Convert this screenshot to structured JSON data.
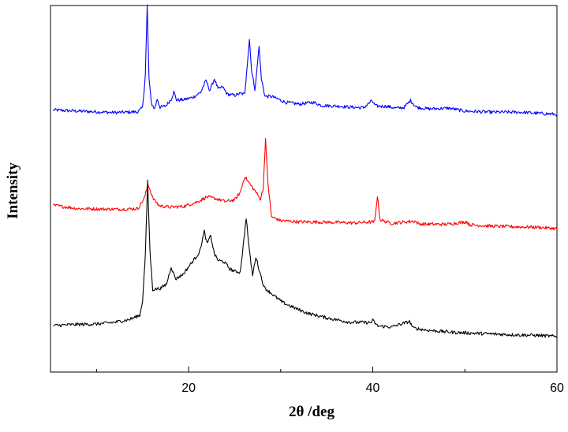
{
  "chart_data": {
    "type": "line",
    "title": "",
    "xlabel": "2θ /deg",
    "ylabel": "Intensity",
    "xlim": [
      5,
      60
    ],
    "ylim": [
      0,
      100
    ],
    "x_ticks": [
      20,
      40,
      60
    ],
    "x_tick_labels": [
      "20",
      "40",
      "60"
    ],
    "x_minor_ticks": [
      10,
      30,
      50
    ],
    "y_ticks_shown": false,
    "grid": false,
    "legend": "none",
    "series": [
      {
        "color": "#0000ff",
        "values": [
          [
            5.3,
            71.5
          ],
          [
            8,
            71.2
          ],
          [
            10,
            71.0
          ],
          [
            12,
            70.8
          ],
          [
            14.5,
            71.0
          ],
          [
            15.0,
            72.2
          ],
          [
            15.3,
            81
          ],
          [
            15.5,
            100
          ],
          [
            15.7,
            80
          ],
          [
            15.95,
            73.4
          ],
          [
            16.3,
            71.8
          ],
          [
            16.6,
            74.5
          ],
          [
            16.9,
            72.2
          ],
          [
            17.5,
            72.6
          ],
          [
            18.1,
            74.4
          ],
          [
            18.4,
            76.4
          ],
          [
            18.7,
            74.2
          ],
          [
            19.5,
            74.3
          ],
          [
            20.5,
            75.0
          ],
          [
            21.3,
            76.3
          ],
          [
            21.9,
            79.6
          ],
          [
            22.3,
            76.8
          ],
          [
            22.8,
            80.0
          ],
          [
            23.2,
            77.2
          ],
          [
            23.7,
            77.8
          ],
          [
            24.2,
            75.8
          ],
          [
            25.0,
            75.5
          ],
          [
            25.6,
            76.0
          ],
          [
            26.1,
            75.8
          ],
          [
            26.3,
            82
          ],
          [
            26.6,
            90.8
          ],
          [
            26.85,
            82
          ],
          [
            27.2,
            77.2
          ],
          [
            27.4,
            82
          ],
          [
            27.65,
            88.8
          ],
          [
            27.9,
            80
          ],
          [
            28.3,
            75.2
          ],
          [
            29.0,
            75.2
          ],
          [
            29.6,
            74.6
          ],
          [
            30.5,
            73.6
          ],
          [
            32.0,
            73.1
          ],
          [
            33.5,
            73.6
          ],
          [
            34.5,
            72.7
          ],
          [
            36.0,
            72.6
          ],
          [
            37.5,
            72.3
          ],
          [
            39.0,
            72.1
          ],
          [
            39.9,
            74.0
          ],
          [
            40.3,
            72.6
          ],
          [
            41.5,
            72.5
          ],
          [
            42.5,
            72.0
          ],
          [
            43.4,
            72.2
          ],
          [
            44.1,
            74.1
          ],
          [
            44.7,
            72.3
          ],
          [
            46,
            71.8
          ],
          [
            48.3,
            72.0
          ],
          [
            50,
            71.2
          ],
          [
            53,
            70.9
          ],
          [
            56,
            70.9
          ],
          [
            58,
            70.6
          ],
          [
            60,
            70.3
          ]
        ]
      },
      {
        "color": "#ff0000",
        "values": [
          [
            5.3,
            45.5
          ],
          [
            8,
            44.6
          ],
          [
            10,
            44.5
          ],
          [
            12.5,
            44.4
          ],
          [
            14.5,
            44.6
          ],
          [
            15.2,
            47.5
          ],
          [
            15.6,
            51.3
          ],
          [
            16.1,
            47.5
          ],
          [
            16.8,
            45.4
          ],
          [
            18,
            45.0
          ],
          [
            19.5,
            45.2
          ],
          [
            21,
            46.5
          ],
          [
            22,
            47.8
          ],
          [
            23,
            47.3
          ],
          [
            24,
            46.5
          ],
          [
            25,
            47.0
          ],
          [
            25.6,
            49.0
          ],
          [
            26.1,
            53.4
          ],
          [
            26.6,
            51.5
          ],
          [
            27.2,
            49.5
          ],
          [
            27.8,
            47.2
          ],
          [
            28.1,
            50.0
          ],
          [
            28.35,
            63.7
          ],
          [
            28.6,
            52.0
          ],
          [
            29.0,
            42.4
          ],
          [
            30,
            41.3
          ],
          [
            32,
            41.0
          ],
          [
            35,
            40.9
          ],
          [
            38,
            40.7
          ],
          [
            40.2,
            41.0
          ],
          [
            40.5,
            48.0
          ],
          [
            40.8,
            41.5
          ],
          [
            42,
            40.6
          ],
          [
            44.6,
            41.2
          ],
          [
            45,
            40.4
          ],
          [
            48,
            40.3
          ],
          [
            50.2,
            41.0
          ],
          [
            50.5,
            40.2
          ],
          [
            53,
            39.8
          ],
          [
            56,
            39.6
          ],
          [
            58,
            39.5
          ],
          [
            60,
            39.1
          ]
        ]
      },
      {
        "color": "#000000",
        "values": [
          [
            5.3,
            12.7
          ],
          [
            8,
            13.0
          ],
          [
            10,
            13.1
          ],
          [
            12,
            13.6
          ],
          [
            13.5,
            14.3
          ],
          [
            14.7,
            15.5
          ],
          [
            15.0,
            19.5
          ],
          [
            15.3,
            32
          ],
          [
            15.55,
            52.0
          ],
          [
            15.8,
            33
          ],
          [
            16.1,
            22.5
          ],
          [
            17.0,
            22.9
          ],
          [
            17.6,
            24.0
          ],
          [
            18.1,
            28.7
          ],
          [
            18.6,
            25.4
          ],
          [
            19.4,
            26.7
          ],
          [
            20.2,
            29.4
          ],
          [
            20.8,
            31.4
          ],
          [
            21.2,
            32.8
          ],
          [
            21.7,
            38.4
          ],
          [
            22.0,
            35.0
          ],
          [
            22.4,
            37.2
          ],
          [
            22.8,
            32.2
          ],
          [
            23.2,
            30.5
          ],
          [
            23.9,
            30.0
          ],
          [
            24.5,
            28.1
          ],
          [
            25.1,
            27.4
          ],
          [
            25.6,
            27.3
          ],
          [
            26.0,
            36.0
          ],
          [
            26.25,
            42.2
          ],
          [
            26.6,
            33.0
          ],
          [
            26.95,
            26.3
          ],
          [
            27.3,
            31.5
          ],
          [
            27.6,
            28.5
          ],
          [
            28.2,
            23.1
          ],
          [
            29.2,
            21.0
          ],
          [
            30.2,
            19.0
          ],
          [
            31.5,
            17.5
          ],
          [
            33,
            16.0
          ],
          [
            35,
            14.8
          ],
          [
            37.5,
            13.6
          ],
          [
            39.8,
            13.5
          ],
          [
            40,
            14.1
          ],
          [
            40.5,
            12.6
          ],
          [
            42,
            12.3
          ],
          [
            44,
            13.8
          ],
          [
            44.4,
            12.0
          ],
          [
            46,
            11.4
          ],
          [
            49,
            10.8
          ],
          [
            52,
            10.5
          ],
          [
            55,
            10.2
          ],
          [
            58,
            10.0
          ],
          [
            60,
            9.7
          ]
        ]
      }
    ]
  }
}
